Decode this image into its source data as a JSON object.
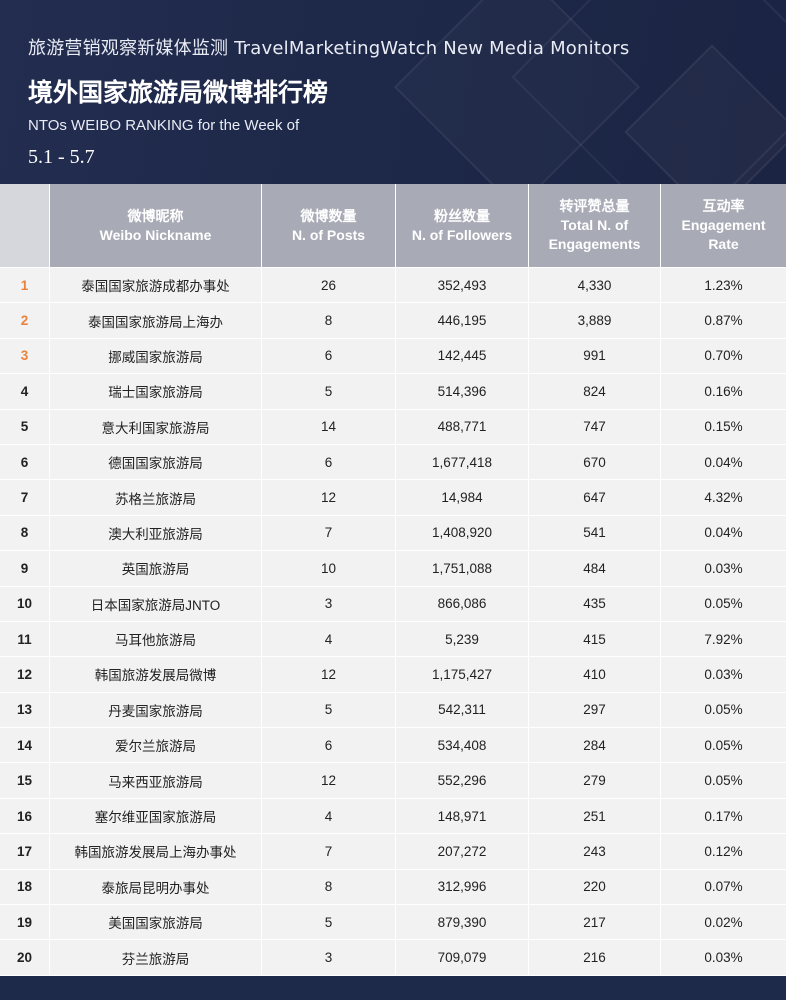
{
  "header": {
    "line1": "旅游营销观察新媒体监测 TravelMarketingWatch New Media Monitors",
    "title": "境外国家旅游局微博排行榜",
    "subtitle": "NTOs WEIBO RANKING for the Week of",
    "date": "5.1 - 5.7"
  },
  "colors": {
    "header_bg": "#1e2a4a",
    "col_header_bg": "#a8aab6",
    "row_bg": "#f2f2f3",
    "top_rank": "#e8833a"
  },
  "table": {
    "columns": [
      {
        "cn": "微博昵称",
        "en": "Weibo Nickname"
      },
      {
        "cn": "微博数量",
        "en": "N. of Posts"
      },
      {
        "cn": "粉丝数量",
        "en": "N. of Followers"
      },
      {
        "cn": "转评赞总量",
        "en1": "Total N. of",
        "en2": "Engagements"
      },
      {
        "cn": "互动率",
        "en1": "Engagement",
        "en2": "Rate"
      }
    ],
    "rows": [
      {
        "rank": "1",
        "name": "泰国国家旅游成都办事处",
        "posts": "26",
        "followers": "352,493",
        "engagements": "4,330",
        "rate": "1.23%"
      },
      {
        "rank": "2",
        "name": "泰国国家旅游局上海办",
        "posts": "8",
        "followers": "446,195",
        "engagements": "3,889",
        "rate": "0.87%"
      },
      {
        "rank": "3",
        "name": "挪威国家旅游局",
        "posts": "6",
        "followers": "142,445",
        "engagements": "991",
        "rate": "0.70%"
      },
      {
        "rank": "4",
        "name": "瑞士国家旅游局",
        "posts": "5",
        "followers": "514,396",
        "engagements": "824",
        "rate": "0.16%"
      },
      {
        "rank": "5",
        "name": "意大利国家旅游局",
        "posts": "14",
        "followers": "488,771",
        "engagements": "747",
        "rate": "0.15%"
      },
      {
        "rank": "6",
        "name": "德国国家旅游局",
        "posts": "6",
        "followers": "1,677,418",
        "engagements": "670",
        "rate": "0.04%"
      },
      {
        "rank": "7",
        "name": "苏格兰旅游局",
        "posts": "12",
        "followers": "14,984",
        "engagements": "647",
        "rate": "4.32%"
      },
      {
        "rank": "8",
        "name": "澳大利亚旅游局",
        "posts": "7",
        "followers": "1,408,920",
        "engagements": "541",
        "rate": "0.04%"
      },
      {
        "rank": "9",
        "name": "英国旅游局",
        "posts": "10",
        "followers": "1,751,088",
        "engagements": "484",
        "rate": "0.03%"
      },
      {
        "rank": "10",
        "name": "日本国家旅游局JNTO",
        "posts": "3",
        "followers": "866,086",
        "engagements": "435",
        "rate": "0.05%"
      },
      {
        "rank": "11",
        "name": "马耳他旅游局",
        "posts": "4",
        "followers": "5,239",
        "engagements": "415",
        "rate": "7.92%"
      },
      {
        "rank": "12",
        "name": "韩国旅游发展局微博",
        "posts": "12",
        "followers": "1,175,427",
        "engagements": "410",
        "rate": "0.03%"
      },
      {
        "rank": "13",
        "name": "丹麦国家旅游局",
        "posts": "5",
        "followers": "542,311",
        "engagements": "297",
        "rate": "0.05%"
      },
      {
        "rank": "14",
        "name": "爱尔兰旅游局",
        "posts": "6",
        "followers": "534,408",
        "engagements": "284",
        "rate": "0.05%"
      },
      {
        "rank": "15",
        "name": "马来西亚旅游局",
        "posts": "12",
        "followers": "552,296",
        "engagements": "279",
        "rate": "0.05%"
      },
      {
        "rank": "16",
        "name": "塞尔维亚国家旅游局",
        "posts": "4",
        "followers": "148,971",
        "engagements": "251",
        "rate": "0.17%"
      },
      {
        "rank": "17",
        "name": "韩国旅游发展局上海办事处",
        "posts": "7",
        "followers": "207,272",
        "engagements": "243",
        "rate": "0.12%"
      },
      {
        "rank": "18",
        "name": "泰旅局昆明办事处",
        "posts": "8",
        "followers": "312,996",
        "engagements": "220",
        "rate": "0.07%"
      },
      {
        "rank": "19",
        "name": "美国国家旅游局",
        "posts": "5",
        "followers": "879,390",
        "engagements": "217",
        "rate": "0.02%"
      },
      {
        "rank": "20",
        "name": "芬兰旅游局",
        "posts": "3",
        "followers": "709,079",
        "engagements": "216",
        "rate": "0.03%"
      }
    ]
  }
}
